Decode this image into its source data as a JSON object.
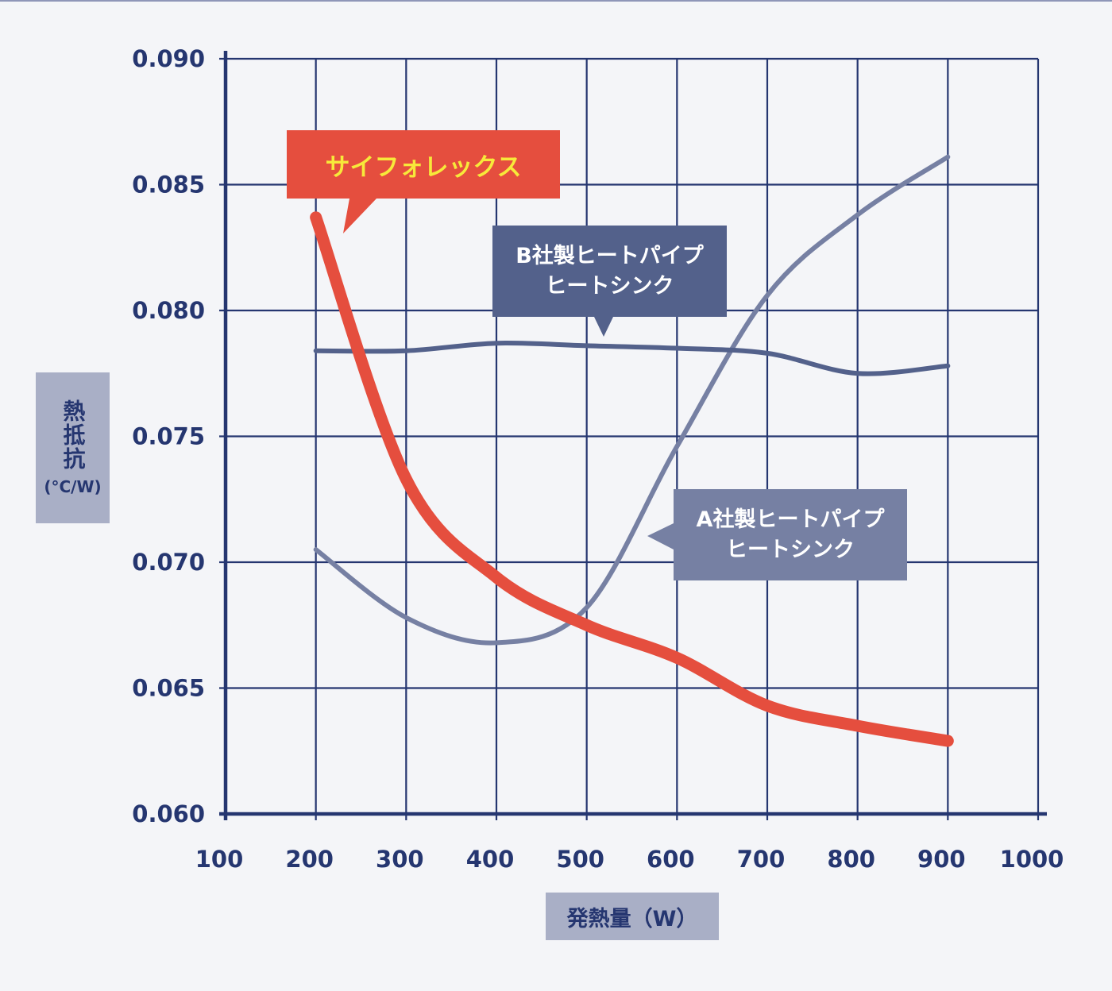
{
  "colors": {
    "background": "#f4f5f8",
    "grid": "#253670",
    "siphorex": "#e54e3e",
    "siphorex_label": "#f7e93a",
    "company_b": "#53618b",
    "company_a": "#7680a3",
    "axis_label_bg": "#a9afc6"
  },
  "y_axis": {
    "label_kanji": "熱抵抗",
    "label_unit": "(°C/W)"
  },
  "x_axis": {
    "label": "発熱量（W）"
  },
  "callouts": {
    "siphorex": "サイフォレックス",
    "company_b_line1": "B社製ヒートパイプ",
    "company_b_line2": "ヒートシンク",
    "company_a_line1": "A社製ヒートパイプ",
    "company_a_line2": "ヒートシンク"
  },
  "chart_data": {
    "type": "line",
    "title": "",
    "xlabel": "発熱量（W）",
    "ylabel": "熱抵抗 (°C/W)",
    "x_ticks": [
      "100",
      "200",
      "300",
      "400",
      "500",
      "600",
      "700",
      "800",
      "900",
      "1000"
    ],
    "y_ticks": [
      "0.060",
      "0.065",
      "0.070",
      "0.075",
      "0.080",
      "0.085",
      "0.090"
    ],
    "xlim": [
      100,
      1000
    ],
    "ylim": [
      0.06,
      0.09
    ],
    "grid": true,
    "legend": "callout labels",
    "x": [
      200,
      300,
      400,
      500,
      600,
      700,
      800,
      900
    ],
    "series": [
      {
        "name": "サイフォレックス",
        "color": "#e54e3e",
        "values": [
          0.0837,
          0.0733,
          0.0694,
          0.0675,
          0.0662,
          0.0643,
          0.0635,
          0.0629
        ]
      },
      {
        "name": "B社製ヒートパイプヒートシンク",
        "color": "#53618b",
        "values": [
          0.0784,
          0.0784,
          0.0787,
          0.0786,
          0.0785,
          0.0783,
          0.0775,
          0.0778
        ]
      },
      {
        "name": "A社製ヒートパイプヒートシンク",
        "color": "#7680a3",
        "values": [
          0.0705,
          0.0678,
          0.0668,
          0.0682,
          0.0746,
          0.0806,
          0.0838,
          0.0861
        ]
      }
    ]
  }
}
